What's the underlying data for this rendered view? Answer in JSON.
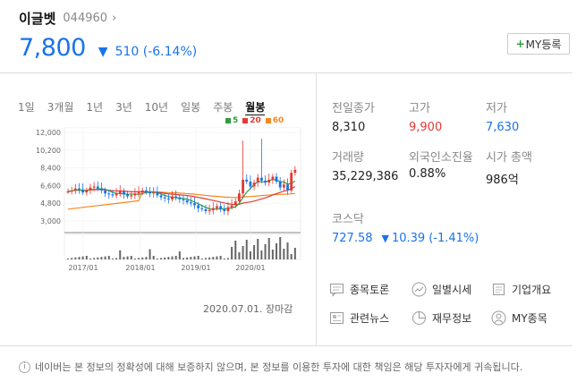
{
  "stock": {
    "name": "이글벳",
    "code": "044960",
    "chevron": "›"
  },
  "price": {
    "current": "7,800",
    "change": "510",
    "change_pct": "(-6.14%)",
    "direction": "down"
  },
  "my_button": {
    "plus": "+",
    "label": "MY등록"
  },
  "period_tabs": [
    "1일",
    "3개월",
    "1년",
    "3년",
    "10년",
    "일봉",
    "주봉",
    "월봉"
  ],
  "active_period": "월봉",
  "legend": [
    {
      "label": "5",
      "color": "#2e9e3e"
    },
    {
      "label": "20",
      "color": "#e53935"
    },
    {
      "label": "60",
      "color": "#f5891f"
    }
  ],
  "chart_data": {
    "type": "candlestick",
    "y_ticks": [
      "12,000",
      "10,200",
      "8,400",
      "6,600",
      "4,800",
      "3,000"
    ],
    "x_ticks": [
      "2017/01",
      "2018/01",
      "2019/01",
      "2020/01"
    ],
    "ylim": [
      3000,
      12000
    ]
  },
  "chart_date": "2020.07.01. 장마감",
  "stats": {
    "prev_close_label": "전일종가",
    "prev_close": "8,310",
    "high_label": "고가",
    "high": "9,900",
    "low_label": "저가",
    "low": "7,630",
    "volume_label": "거래량",
    "volume": "35,229,386",
    "foreign_label": "외국인소진율",
    "foreign": "0.88%",
    "mcap_label": "시가 총액",
    "mcap": "986억"
  },
  "index": {
    "label": "코스닥",
    "value": "727.58",
    "change": "10.39",
    "pct": "(-1.41%)"
  },
  "links": [
    "종목토론",
    "일별시세",
    "기업개요",
    "관련뉴스",
    "재무정보",
    "MY종목"
  ],
  "footer": "네이버는 본 정보의 정확성에 대해 보증하지 않으며, 본 정보를 이용한 투자에 대한 책임은 해당 투자자에게 귀속됩니다."
}
